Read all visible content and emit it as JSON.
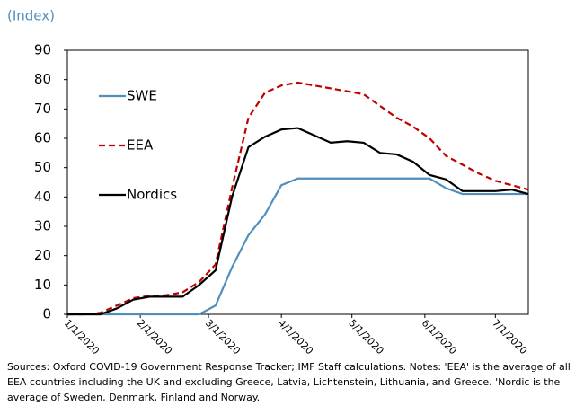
{
  "chart_data": {
    "type": "line",
    "subtitle": "(Index)",
    "x": [
      "2020-01-01",
      "2020-01-08",
      "2020-01-15",
      "2020-01-22",
      "2020-01-29",
      "2020-02-05",
      "2020-02-12",
      "2020-02-19",
      "2020-02-26",
      "2020-03-04",
      "2020-03-11",
      "2020-03-18",
      "2020-03-25",
      "2020-04-01",
      "2020-04-08",
      "2020-04-15",
      "2020-04-22",
      "2020-04-29",
      "2020-05-06",
      "2020-05-13",
      "2020-05-20",
      "2020-05-27",
      "2020-06-03",
      "2020-06-10",
      "2020-06-17",
      "2020-06-24",
      "2020-07-01",
      "2020-07-08",
      "2020-07-15"
    ],
    "series": [
      {
        "name": "SWE",
        "color": "#4f8fbf",
        "dash": false,
        "values": [
          0,
          0,
          0,
          0,
          0,
          0,
          0,
          0,
          0,
          3,
          16,
          27,
          34,
          44,
          46.3,
          46.3,
          46.3,
          46.3,
          46.3,
          46.3,
          46.3,
          46.3,
          46.3,
          43,
          41,
          41,
          41,
          41,
          41
        ]
      },
      {
        "name": "EEA",
        "color": "#c00000",
        "dash": true,
        "values": [
          0,
          0,
          0.5,
          3,
          5.5,
          6.3,
          6.5,
          7.5,
          11,
          17,
          43,
          67,
          75.5,
          78,
          79,
          78,
          77,
          76,
          75,
          71,
          67,
          64,
          60,
          54,
          51,
          48,
          45.5,
          44,
          42.5
        ]
      },
      {
        "name": "Nordics",
        "color": "#000000",
        "dash": false,
        "values": [
          0,
          0,
          0,
          2,
          5,
          6,
          6,
          6,
          10,
          15,
          40,
          57,
          60.5,
          63,
          63.5,
          61,
          58.5,
          59,
          58.5,
          55,
          54.5,
          52,
          47.5,
          46,
          42,
          42,
          42,
          42.5,
          41
        ]
      }
    ],
    "xlim": [
      "2020-01-01",
      "2020-07-15"
    ],
    "xticks": [
      {
        "value": "2020-01-01",
        "label": "1/1/2020"
      },
      {
        "value": "2020-02-01",
        "label": "2/1/2020"
      },
      {
        "value": "2020-03-01",
        "label": "3/1/2020"
      },
      {
        "value": "2020-04-01",
        "label": "4/1/2020"
      },
      {
        "value": "2020-05-01",
        "label": "5/1/2020"
      },
      {
        "value": "2020-06-01",
        "label": "6/1/2020"
      },
      {
        "value": "2020-07-01",
        "label": "7/1/2020"
      }
    ],
    "ylim": [
      0,
      90
    ],
    "yticks": [
      0,
      10,
      20,
      30,
      40,
      50,
      60,
      70,
      80,
      90
    ],
    "note": "Sources: Oxford COVID-19 Government Response Tracker; IMF Staff calculations. Notes: 'EEA' is the average of all EEA countries including the UK and excluding Greece, Latvia, Lichtenstein, Lithuania, and Greece. 'Nordic is the average of Sweden, Denmark, Finland and Norway."
  }
}
